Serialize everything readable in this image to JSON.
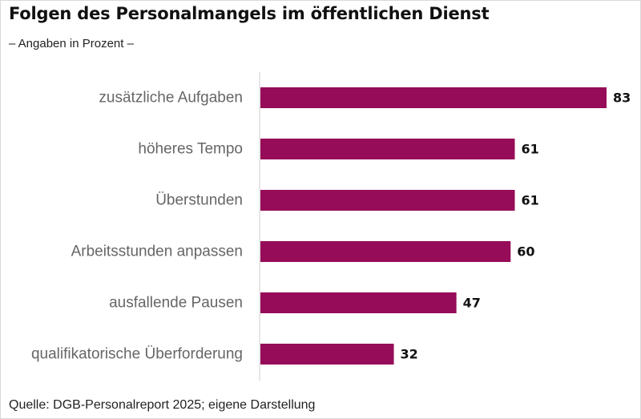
{
  "header": {
    "title": "Folgen des Personalmangels im öffentlichen Dienst",
    "subtitle": "– Angaben in Prozent –"
  },
  "footer": {
    "source": "Quelle: DGB-Personalreport 2025; eigene Darstellung"
  },
  "colors": {
    "bar": "#960c58",
    "axis": "#cccccc"
  },
  "chart_data": {
    "type": "bar",
    "orientation": "horizontal",
    "categories": [
      "zusätzliche Aufgaben",
      "höheres Tempo",
      "Überstunden",
      "Arbeitsstunden anpassen",
      "ausfallende Pausen",
      "qualifikatorische Überforderung"
    ],
    "values": [
      83,
      61,
      61,
      60,
      47,
      32
    ],
    "title": "Folgen des Personalmangels im öffentlichen Dienst",
    "subtitle": "– Angaben in Prozent –",
    "xlim": [
      0,
      83
    ],
    "grid": false,
    "data_labels": true
  }
}
